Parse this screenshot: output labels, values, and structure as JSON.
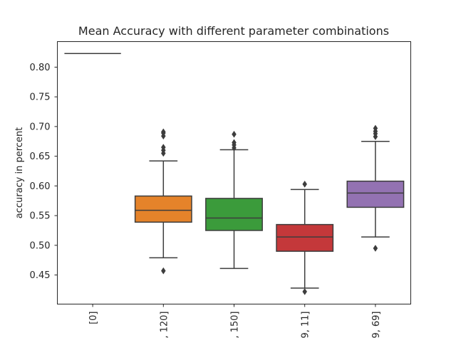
{
  "chart_data": {
    "type": "box",
    "title": "Mean Accuracy with different parameter combinations",
    "xlabel": "",
    "ylabel": "accuracy in percent",
    "ylim": [
      0.401,
      0.843
    ],
    "yticks": [
      0.45,
      0.5,
      0.55,
      0.6,
      0.65,
      0.7,
      0.75,
      0.8
    ],
    "ytick_labels": [
      "0.45",
      "0.50",
      "0.55",
      "0.60",
      "0.65",
      "0.70",
      "0.75",
      "0.80"
    ],
    "grid": false,
    "categories": [
      "[0]",
      ", 120]",
      ", 150]",
      "9, 11]",
      "9, 69]"
    ],
    "boxes": [
      {
        "category": "[0]",
        "color": "#1f77b4",
        "whislo": 0.823,
        "q1": 0.823,
        "med": 0.823,
        "q3": 0.823,
        "whishi": 0.823,
        "fliers": []
      },
      {
        "category": ", 120]",
        "color": "#e5832a",
        "whislo": 0.479,
        "q1": 0.539,
        "med": 0.559,
        "q3": 0.583,
        "whishi": 0.642,
        "fliers": [
          0.457,
          0.655,
          0.66,
          0.665,
          0.684,
          0.689,
          0.691
        ]
      },
      {
        "category": ", 150]",
        "color": "#3b9b3b",
        "whislo": 0.461,
        "q1": 0.525,
        "med": 0.546,
        "q3": 0.579,
        "whishi": 0.661,
        "fliers": [
          0.664,
          0.669,
          0.673,
          0.687
        ]
      },
      {
        "category": "9, 11]",
        "color": "#c4383a",
        "whislo": 0.428,
        "q1": 0.49,
        "med": 0.514,
        "q3": 0.535,
        "whishi": 0.594,
        "fliers": [
          0.422,
          0.603
        ]
      },
      {
        "category": "9, 69]",
        "color": "#9372b2",
        "whislo": 0.514,
        "q1": 0.564,
        "med": 0.588,
        "q3": 0.608,
        "whishi": 0.675,
        "fliers": [
          0.495,
          0.683,
          0.688,
          0.692,
          0.697
        ]
      }
    ]
  }
}
